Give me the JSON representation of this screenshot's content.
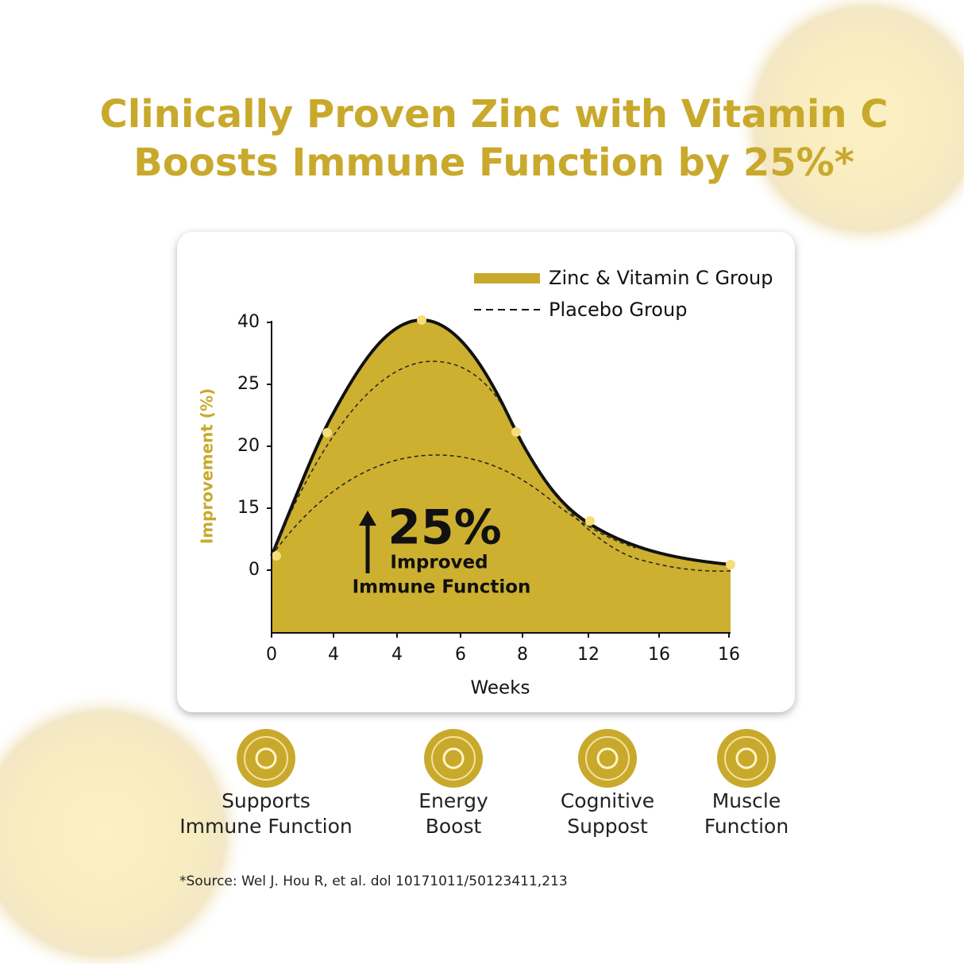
{
  "header": {
    "title_lines": [
      "Clinically Proven Zinc with Vitamin C",
      "Boosts Immune Function by 25%*"
    ]
  },
  "chart": {
    "legend": [
      "Zinc & Vitamin C Group",
      "Placebo Group"
    ],
    "y_axis_title": "Improvement (%)",
    "y_tick_labels": [
      "40",
      "25",
      "20",
      "15",
      "0"
    ],
    "x_tick_labels": [
      "0",
      "4",
      "4",
      "6",
      "8",
      "12",
      "16",
      "16"
    ],
    "x_axis_title": "Weeks",
    "callout": {
      "big": "25%",
      "line1": "Improved",
      "line2": "Immune Function"
    }
  },
  "features": [
    {
      "lines": [
        "Supports",
        "Immune Function"
      ]
    },
    {
      "lines": [
        "Energy",
        "Boost"
      ]
    },
    {
      "lines": [
        "Cognitive",
        "Suppost"
      ]
    },
    {
      "lines": [
        "Muscle",
        "Function"
      ]
    }
  ],
  "footer": {
    "source": "*Source: Wel J. Hou R, et al. dol 10171011/50123411,213"
  }
}
